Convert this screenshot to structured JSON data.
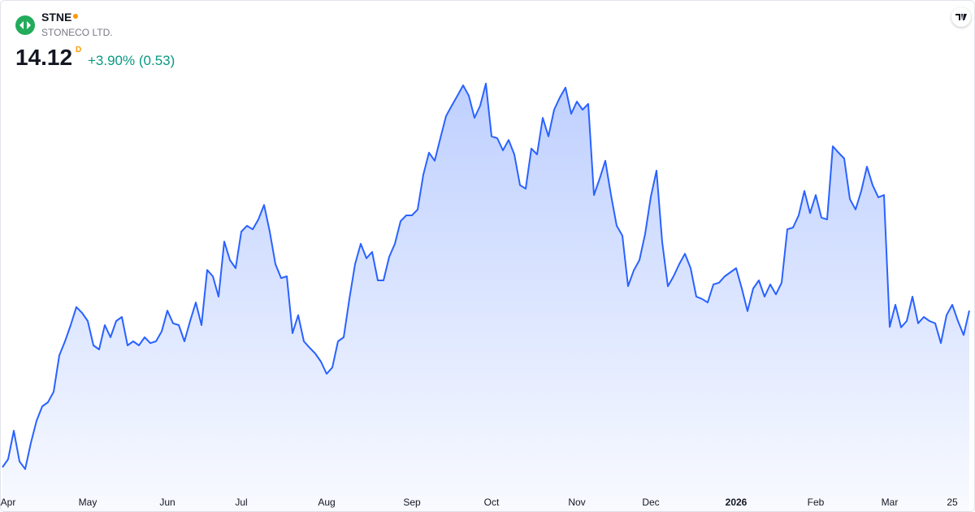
{
  "header": {
    "symbol": "STNE",
    "name": "STONECO LTD.",
    "price": "14.12",
    "price_flag": "D",
    "change": "+3.90% (0.53)"
  },
  "chart_data": {
    "type": "area",
    "series": [
      {
        "color": "#2962ff",
        "values": [
          10.65,
          10.83,
          11.46,
          10.78,
          10.61,
          11.19,
          11.68,
          12.0,
          12.09,
          12.32,
          13.13,
          13.44,
          13.8,
          14.2,
          14.07,
          13.89,
          13.35,
          13.26,
          13.8,
          13.53,
          13.89,
          13.98,
          13.35,
          13.44,
          13.35,
          13.53,
          13.4,
          13.44,
          13.66,
          14.12,
          13.84,
          13.8,
          13.44,
          13.89,
          14.3,
          13.8,
          15.02,
          14.88,
          14.43,
          15.65,
          15.24,
          15.06,
          15.87,
          16.0,
          15.92,
          16.14,
          16.46,
          15.87,
          15.15,
          14.84,
          14.88,
          13.62,
          14.02,
          13.44,
          13.3,
          13.17,
          12.99,
          12.72,
          12.86,
          13.44,
          13.53,
          14.38,
          15.15,
          15.6,
          15.28,
          15.42,
          14.79,
          14.79,
          15.31,
          15.6,
          16.1,
          16.23,
          16.23,
          16.36,
          17.13,
          17.62,
          17.44,
          17.94,
          18.43,
          18.66,
          18.88,
          19.11,
          18.88,
          18.39,
          18.66,
          19.15,
          17.98,
          17.94,
          17.67,
          17.9,
          17.58,
          16.9,
          16.82,
          17.71,
          17.58,
          18.39,
          17.98,
          18.57,
          18.84,
          19.06,
          18.48,
          18.75,
          18.57,
          18.7,
          16.68,
          17.04,
          17.44,
          16.68,
          16.0,
          15.78,
          14.66,
          15.01,
          15.24,
          15.82,
          16.64,
          17.22,
          15.64,
          14.66,
          14.88,
          15.15,
          15.38,
          15.06,
          14.43,
          14.38,
          14.3,
          14.7,
          14.74,
          14.88,
          14.97,
          15.06,
          14.61,
          14.11,
          14.61,
          14.79,
          14.43,
          14.7,
          14.48,
          14.74,
          15.92,
          15.96,
          16.23,
          16.77,
          16.28,
          16.68,
          16.18,
          16.14,
          17.76,
          17.62,
          17.49,
          16.59,
          16.36,
          16.77,
          17.31,
          16.9,
          16.63,
          16.68,
          13.76,
          14.25,
          13.75,
          13.89,
          14.43,
          13.84,
          13.98,
          13.89,
          13.84,
          13.4,
          14.02,
          14.25,
          13.89,
          13.58,
          14.12
        ]
      }
    ],
    "ylim": [
      10.2,
      19.38
    ],
    "xticks": [
      {
        "value": 1,
        "label": "Apr"
      },
      {
        "value": 15,
        "label": "May"
      },
      {
        "value": 29,
        "label": "Jun"
      },
      {
        "value": 42,
        "label": "Jul"
      },
      {
        "value": 57,
        "label": "Aug"
      },
      {
        "value": 72,
        "label": "Sep"
      },
      {
        "value": 86,
        "label": "Oct"
      },
      {
        "value": 101,
        "label": "Nov"
      },
      {
        "value": 114,
        "label": "Dec"
      },
      {
        "value": 129,
        "label": "2026"
      },
      {
        "value": 143,
        "label": "Feb"
      },
      {
        "value": 156,
        "label": "Mar"
      },
      {
        "value": 167,
        "label": "25"
      }
    ]
  }
}
